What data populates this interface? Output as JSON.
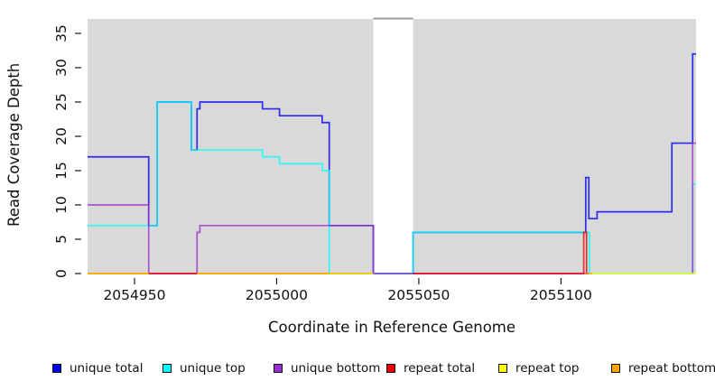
{
  "chart_data": {
    "type": "line",
    "subtype": "step-coverage",
    "title": "",
    "xlabel": "Coordinate in Reference Genome",
    "ylabel": "Read Coverage Depth",
    "xlim": [
      2054933.5,
      2055147.5
    ],
    "ylim": [
      0,
      37.1
    ],
    "grid": false,
    "legend_position": "bottom",
    "region_fill": "#d9d9d9",
    "gap": {
      "from": 2055034,
      "to": 2055048,
      "top_line_color": "#9c9c9c"
    },
    "background_regions": [
      {
        "from": 2054933.5,
        "to": 2055034
      },
      {
        "from": 2055048,
        "to": 2055147.5
      }
    ],
    "x_ticks": [
      {
        "value": 2054950,
        "label": "2054950"
      },
      {
        "value": 2055000,
        "label": "2055000"
      },
      {
        "value": 2055050,
        "label": "2055050"
      },
      {
        "value": 2055100,
        "label": "2055100"
      }
    ],
    "y_ticks": [
      {
        "value": 0,
        "label": "0"
      },
      {
        "value": 5,
        "label": "5"
      },
      {
        "value": 10,
        "label": "10"
      },
      {
        "value": 15,
        "label": "15"
      },
      {
        "value": 20,
        "label": "20"
      },
      {
        "value": 25,
        "label": "25"
      },
      {
        "value": 30,
        "label": "30"
      },
      {
        "value": 35,
        "label": "35"
      }
    ],
    "series": [
      {
        "id": "unique-total",
        "label": "unique total",
        "color": "#0000ee",
        "segments": [
          {
            "points": [
              [
                2054933.5,
                17
              ],
              [
                2054955,
                7
              ],
              [
                2054958,
                25
              ],
              [
                2054970,
                18
              ],
              [
                2054972,
                24
              ],
              [
                2054973,
                25
              ],
              [
                2054995,
                24
              ],
              [
                2055001,
                23
              ],
              [
                2055016,
                22
              ],
              [
                2055018.5,
                7
              ],
              [
                2055034,
                0
              ],
              [
                2055048,
                6
              ],
              [
                2055108.7,
                14
              ],
              [
                2055109.8,
                8
              ],
              [
                2055112.7,
                9
              ],
              [
                2055139,
                19
              ],
              [
                2055146.3,
                32
              ]
            ],
            "end": 2055147.5
          }
        ]
      },
      {
        "id": "unique-top",
        "label": "unique top",
        "color": "#00ffff",
        "segments": [
          {
            "points": [
              [
                2054933.5,
                7
              ],
              [
                2054958,
                25
              ],
              [
                2054970,
                18
              ],
              [
                2054995,
                17
              ],
              [
                2055001,
                16
              ],
              [
                2055016,
                15
              ],
              [
                2055018.5,
                0
              ],
              [
                2055048,
                6
              ],
              [
                2055110,
                0
              ],
              [
                2055146.3,
                13
              ]
            ],
            "end": 2055147.5
          }
        ]
      },
      {
        "id": "unique-bottom",
        "label": "unique bottom",
        "color": "#9932cc",
        "segments": [
          {
            "points": [
              [
                2054933.5,
                10
              ],
              [
                2054955,
                0
              ],
              [
                2054972,
                6
              ],
              [
                2054973,
                7
              ],
              [
                2055034,
                0
              ]
            ],
            "end": 2055110
          },
          {
            "points": [
              [
                2055146,
                0
              ],
              [
                2055146.3,
                19
              ]
            ],
            "end": 2055147.5
          }
        ]
      },
      {
        "id": "repeat-total",
        "label": "repeat total",
        "color": "#ee0000",
        "segments": [
          {
            "points": [
              [
                2054933.5,
                0
              ]
            ],
            "end": 2055034
          },
          {
            "points": [
              [
                2055048,
                0
              ],
              [
                2055108,
                6
              ],
              [
                2055109,
                0
              ]
            ],
            "end": 2055109.5
          }
        ]
      },
      {
        "id": "repeat-top",
        "label": "repeat top",
        "color": "#ffff00",
        "segments": [
          {
            "points": [
              [
                2054933.5,
                0
              ]
            ],
            "end": 2054955
          },
          {
            "points": [
              [
                2054972,
                0
              ]
            ],
            "end": 2055034
          },
          {
            "points": [
              [
                2055110,
                0
              ]
            ],
            "end": 2055147.5
          }
        ]
      },
      {
        "id": "repeat-bottom",
        "label": "repeat bottom",
        "color": "#ffa500",
        "segments": [
          {
            "points": [
              [
                2054933.5,
                0
              ]
            ],
            "end": 2054955
          },
          {
            "points": [
              [
                2054972,
                0
              ]
            ],
            "end": 2055018.5
          },
          {
            "points": [
              [
                2055108.5,
                0
              ]
            ],
            "end": 2055111
          }
        ]
      }
    ]
  }
}
